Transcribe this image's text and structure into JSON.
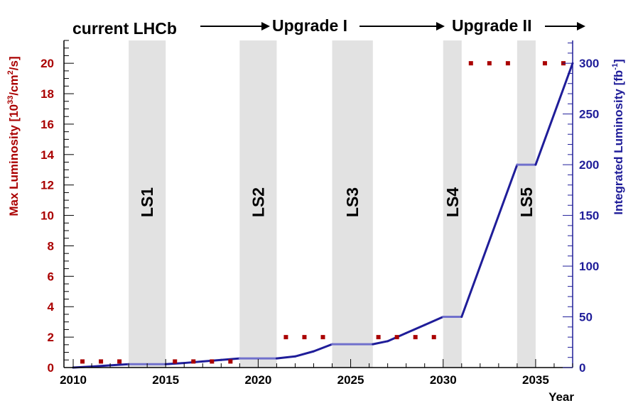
{
  "phases": [
    {
      "label": "current LHCb"
    },
    {
      "label": "Upgrade I"
    },
    {
      "label": "Upgrade II"
    }
  ],
  "colors": {
    "left_axis": "#aa0000",
    "right_axis": "#1f1d99",
    "line_main": "#1f1d99",
    "line_flat": "#7070cc",
    "shutdown": "#e2e2e2",
    "marker": "#aa0000"
  },
  "chart_data": {
    "type": "line",
    "xlabel": "Year",
    "ylabel_left": {
      "main": "Max Luminosity [10",
      "sup": "33",
      "rest": "/cm",
      "sup2": "2",
      "end": "/s]"
    },
    "ylabel_right": {
      "main": "Integrated Luminosity [fb",
      "sup": "-1",
      "end": "]"
    },
    "xlim": [
      2009.5,
      2037
    ],
    "ylim_left": [
      0,
      21.5
    ],
    "ylim_right": [
      0,
      322.5
    ],
    "x_ticks": [
      2010,
      2015,
      2020,
      2025,
      2030,
      2035
    ],
    "y_left_ticks": [
      0,
      2,
      4,
      6,
      8,
      10,
      12,
      14,
      16,
      18,
      20
    ],
    "y_right_ticks": [
      0,
      50,
      100,
      150,
      200,
      250,
      300
    ],
    "shutdowns": [
      {
        "label": "LS1",
        "start": 2013.0,
        "end": 2015.0
      },
      {
        "label": "LS2",
        "start": 2019.0,
        "end": 2021.0
      },
      {
        "label": "LS3",
        "start": 2024.0,
        "end": 2026.2
      },
      {
        "label": "LS4",
        "start": 2030.0,
        "end": 2031.0
      },
      {
        "label": "LS5",
        "start": 2034.0,
        "end": 2035.0
      }
    ],
    "max_luminosity": {
      "x": [
        2010.5,
        2011.5,
        2012.5,
        2015.5,
        2016.5,
        2017.5,
        2018.5,
        2021.5,
        2022.5,
        2023.5,
        2026.5,
        2027.5,
        2028.5,
        2029.5,
        2031.5,
        2032.5,
        2033.5,
        2035.5,
        2036.5
      ],
      "y": [
        0.4,
        0.4,
        0.4,
        0.4,
        0.4,
        0.4,
        0.4,
        2.0,
        2.0,
        2.0,
        2.0,
        2.0,
        2.0,
        2.0,
        20.0,
        20.0,
        20.0,
        20.0,
        20.0
      ]
    },
    "integrated_luminosity": {
      "x": [
        2010,
        2011,
        2012,
        2013,
        2015,
        2016,
        2017,
        2018,
        2019,
        2021,
        2022,
        2023,
        2024,
        2026.2,
        2027,
        2028,
        2029,
        2030,
        2031,
        2034,
        2035,
        2037
      ],
      "y": [
        0,
        1,
        2.2,
        3.3,
        3.3,
        4.5,
        6,
        7.5,
        9,
        9,
        11,
        16,
        23,
        23,
        26,
        34,
        42,
        50,
        50,
        200,
        200,
        300
      ]
    }
  }
}
